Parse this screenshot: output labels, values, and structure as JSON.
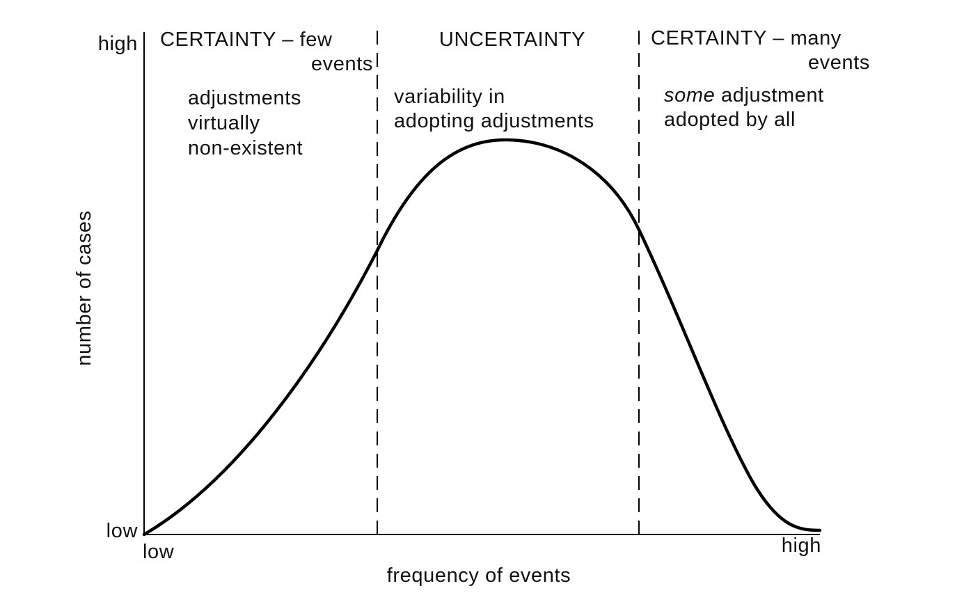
{
  "chart_data": {
    "type": "line",
    "xlabel": "frequency of events",
    "ylabel": "number of cases",
    "x_ticks": {
      "low": "low",
      "high": "high"
    },
    "y_ticks": {
      "low": "low",
      "high": "high"
    },
    "regions": [
      {
        "heading_lines": [
          "CERTAINTY – few",
          "events"
        ],
        "description_lines": [
          "adjustments",
          "virtually",
          "non-existent"
        ]
      },
      {
        "heading_lines": [
          "UNCERTAINTY"
        ],
        "description_lines": [
          "variability in",
          "adopting adjustments"
        ]
      },
      {
        "heading_lines": [
          "CERTAINTY – many",
          "events"
        ],
        "description_lines": [
          [
            {
              "text": "some",
              "italic": true
            },
            {
              "text": " adjustment",
              "italic": false
            }
          ],
          "adopted by all"
        ]
      }
    ],
    "curve_color": "#000000"
  }
}
